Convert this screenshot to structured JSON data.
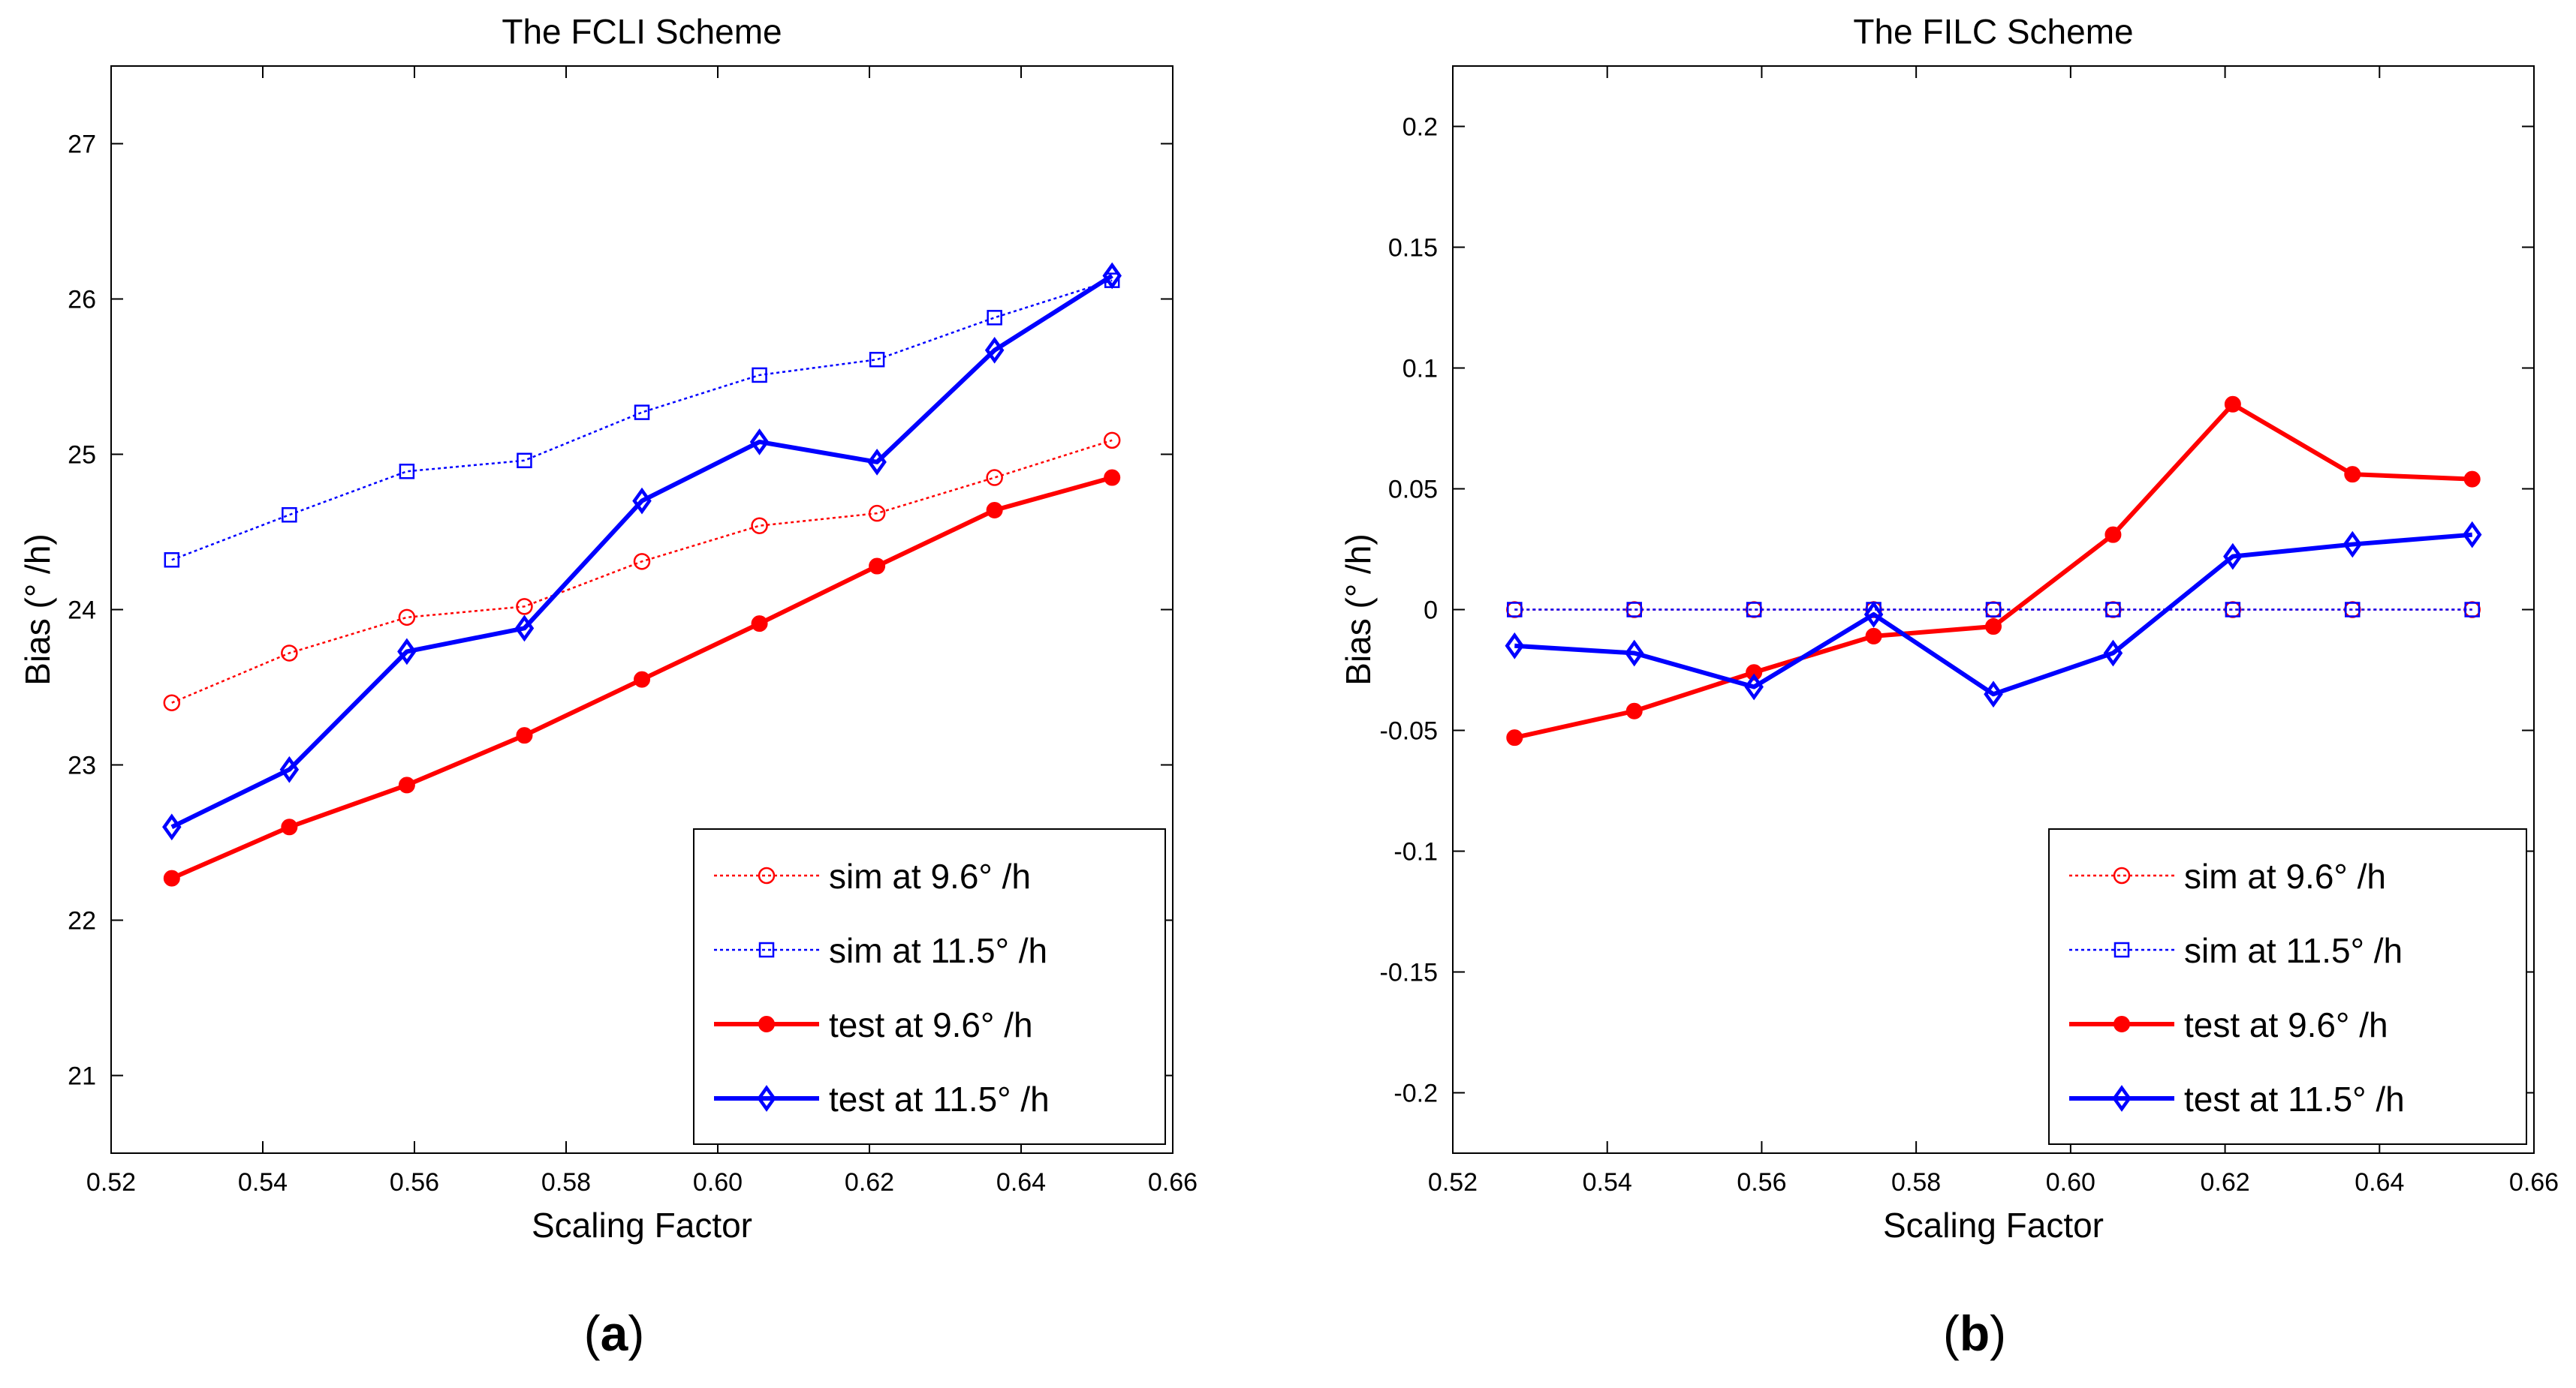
{
  "chart_data": [
    {
      "type": "line",
      "panel_label": "a",
      "title": "The FCLI Scheme",
      "xlabel": "Scaling Factor",
      "ylabel": "Bias (° /h)",
      "xlim": [
        0.52,
        0.66
      ],
      "ylim": [
        20.5,
        27.5
      ],
      "xticks": [
        "0.52",
        "0.54",
        "0.56",
        "0.58",
        "0.60",
        "0.62",
        "0.64",
        "0.66"
      ],
      "yticks": [
        "21",
        "22",
        "23",
        "24",
        "25",
        "26",
        "27"
      ],
      "grid": false,
      "legend_position": "bottom-right",
      "x": [
        0.528,
        0.5435,
        0.559,
        0.5745,
        0.59,
        0.6055,
        0.621,
        0.6365,
        0.652
      ],
      "series": [
        {
          "name": "sim at 9.6° /h",
          "color": "#ff0000",
          "style": "dotted",
          "marker": "circle",
          "values": [
            23.4,
            23.72,
            23.95,
            24.02,
            24.31,
            24.54,
            24.62,
            24.85,
            25.09
          ]
        },
        {
          "name": "sim at 11.5° /h",
          "color": "#0000ff",
          "style": "dotted",
          "marker": "square",
          "values": [
            24.32,
            24.61,
            24.89,
            24.96,
            25.27,
            25.51,
            25.61,
            25.88,
            26.12
          ]
        },
        {
          "name": "test at 9.6° /h",
          "color": "#ff0000",
          "style": "solid",
          "marker": "filled-circle",
          "values": [
            22.27,
            22.6,
            22.87,
            23.19,
            23.55,
            23.91,
            24.28,
            24.64,
            24.85
          ]
        },
        {
          "name": "test at 11.5° /h",
          "color": "#0000ff",
          "style": "solid",
          "marker": "diamond",
          "values": [
            22.6,
            22.97,
            23.73,
            23.88,
            24.7,
            25.08,
            24.95,
            25.67,
            26.15
          ]
        }
      ]
    },
    {
      "type": "line",
      "panel_label": "b",
      "title": "The FILC Scheme",
      "xlabel": "Scaling Factor",
      "ylabel": "Bias (° /h)",
      "xlim": [
        0.52,
        0.66
      ],
      "ylim": [
        -0.225,
        0.225
      ],
      "xticks": [
        "0.52",
        "0.54",
        "0.56",
        "0.58",
        "0.60",
        "0.62",
        "0.64",
        "0.66"
      ],
      "yticks": [
        "-0.2",
        "-0.15",
        "-0.1",
        "-0.05",
        "0",
        "0.05",
        "0.1",
        "0.15",
        "0.2"
      ],
      "grid": false,
      "legend_position": "bottom-right",
      "x": [
        0.528,
        0.5435,
        0.559,
        0.5745,
        0.59,
        0.6055,
        0.621,
        0.6365,
        0.652
      ],
      "series": [
        {
          "name": "sim at 9.6° /h",
          "color": "#ff0000",
          "style": "dotted",
          "marker": "circle",
          "values": [
            0,
            0,
            0,
            0,
            0,
            0,
            0,
            0,
            0
          ]
        },
        {
          "name": "sim at 11.5° /h",
          "color": "#0000ff",
          "style": "dotted",
          "marker": "square",
          "values": [
            0,
            0,
            0,
            0,
            0,
            0,
            0,
            0,
            0
          ]
        },
        {
          "name": "test at 9.6° /h",
          "color": "#ff0000",
          "style": "solid",
          "marker": "filled-circle",
          "values": [
            -0.053,
            -0.042,
            -0.026,
            -0.011,
            -0.007,
            0.031,
            0.085,
            0.056,
            0.054
          ]
        },
        {
          "name": "test at 11.5° /h",
          "color": "#0000ff",
          "style": "solid",
          "marker": "diamond",
          "values": [
            -0.015,
            -0.018,
            -0.032,
            -0.002,
            -0.035,
            -0.018,
            0.022,
            0.027,
            0.031
          ]
        }
      ]
    }
  ]
}
